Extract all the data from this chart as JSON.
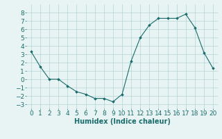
{
  "x": [
    0,
    1,
    2,
    3,
    4,
    5,
    6,
    7,
    8,
    9,
    10,
    11,
    12,
    13,
    14,
    15,
    16,
    17,
    18,
    19,
    20
  ],
  "y": [
    3.3,
    1.5,
    0.0,
    0.0,
    -0.8,
    -1.5,
    -1.8,
    -2.3,
    -2.3,
    -2.7,
    -1.8,
    2.2,
    5.0,
    6.5,
    7.3,
    7.3,
    7.3,
    7.8,
    6.2,
    3.2,
    1.3
  ],
  "line_color": "#1a6b6b",
  "marker_color": "#1a6b6b",
  "bg_color": "#e8f4f4",
  "grid_color": "#b0d4d4",
  "xlabel": "Humidex (Indice chaleur)",
  "ylim": [
    -3.5,
    9.0
  ],
  "xlim": [
    -0.5,
    20.5
  ],
  "yticks": [
    -3,
    -2,
    -1,
    0,
    1,
    2,
    3,
    4,
    5,
    6,
    7,
    8
  ],
  "xticks": [
    0,
    1,
    2,
    3,
    4,
    5,
    6,
    7,
    8,
    9,
    10,
    11,
    12,
    13,
    14,
    15,
    16,
    17,
    18,
    19,
    20
  ],
  "xlabel_fontsize": 7.0,
  "tick_fontsize": 6.5
}
